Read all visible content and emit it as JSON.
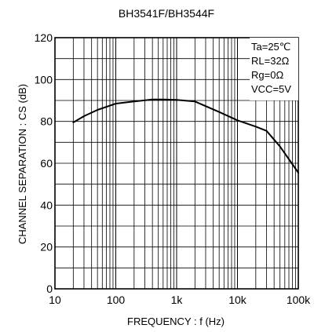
{
  "chart_data": {
    "type": "line",
    "title": "BH3541F/BH3544F",
    "xlabel": "FREQUENCY : f (Hz)",
    "ylabel": "CHANNEL SEPARATION : CS (dB)",
    "x_scale": "log",
    "xlim": [
      10,
      100000
    ],
    "ylim": [
      0,
      120
    ],
    "grid": true,
    "x_ticks": [
      {
        "value": 10,
        "label": "10"
      },
      {
        "value": 100,
        "label": "100"
      },
      {
        "value": 1000,
        "label": "1k"
      },
      {
        "value": 10000,
        "label": "10k"
      },
      {
        "value": 100000,
        "label": "100k"
      }
    ],
    "y_ticks": [
      {
        "value": 0,
        "label": "0"
      },
      {
        "value": 20,
        "label": "20"
      },
      {
        "value": 40,
        "label": "40"
      },
      {
        "value": 60,
        "label": "60"
      },
      {
        "value": 80,
        "label": "80"
      },
      {
        "value": 100,
        "label": "100"
      },
      {
        "value": 120,
        "label": "120"
      }
    ],
    "conditions": [
      "Ta=25℃",
      "RL=32Ω",
      "Rg=0Ω",
      "VCC=5V"
    ],
    "legend_position": "top-right",
    "series": [
      {
        "color": "#000000",
        "x": [
          20,
          30,
          50,
          100,
          200,
          400,
          600,
          1000,
          2000,
          5000,
          10000,
          20000,
          30000,
          50000,
          100000
        ],
        "y": [
          79.5,
          82.5,
          85.5,
          88.5,
          89.5,
          90.5,
          90.5,
          90.3,
          89.5,
          84.5,
          80.5,
          77.5,
          75.5,
          68,
          55.5
        ]
      }
    ]
  }
}
